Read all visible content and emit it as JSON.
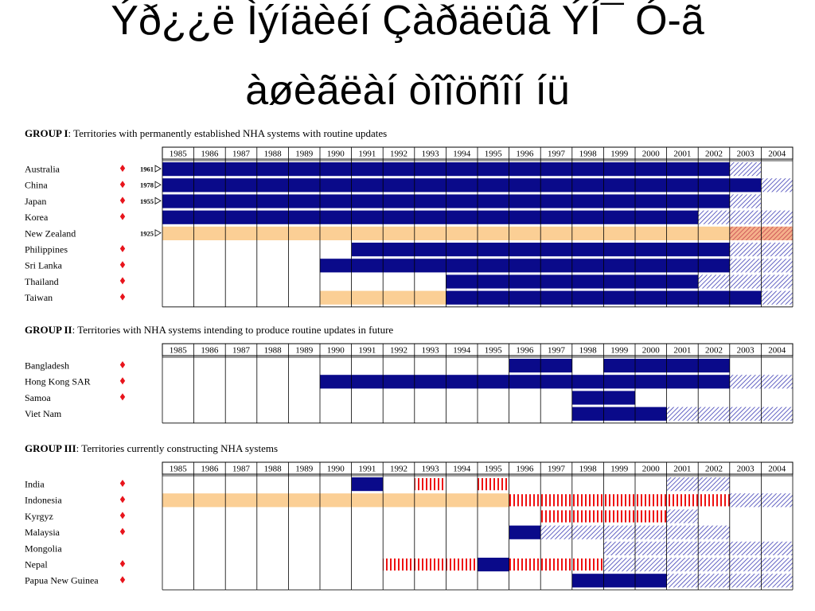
{
  "slide": {
    "title_line1": "Ýð¿¿ë Ìýíäèéí Çàðäëûã ÝÍ¯ Ó-ã",
    "title_line2": "àøèãëàí òîîöñîí íü"
  },
  "colors": {
    "established": "#0a0a8a",
    "partial": "#fbcf95",
    "partial_update": "#f5b08a",
    "under_construction": "#ee1111",
    "planned_hatch": "#3d3db5",
    "marker": "#e8141c"
  },
  "chart_data": {
    "type": "timeline",
    "years": [
      "1985",
      "1986",
      "1987",
      "1988",
      "1989",
      "1990",
      "1991",
      "1992",
      "1993",
      "1994",
      "1995",
      "1996",
      "1997",
      "1998",
      "1999",
      "2000",
      "2001",
      "2002",
      "2003",
      "2004"
    ],
    "groups": [
      {
        "label_bold": "GROUP I",
        "label_rest": ": Territories with permanently established NHA systems with routine updates",
        "rows": [
          {
            "name": "Australia",
            "marker": true,
            "start_label": "1961",
            "segments": [
              {
                "from": 1985,
                "to": 2002,
                "kind": "solid"
              },
              {
                "from": 2003,
                "to": 2003,
                "kind": "hatch"
              }
            ]
          },
          {
            "name": "China",
            "marker": true,
            "start_label": "1978",
            "segments": [
              {
                "from": 1985,
                "to": 2003,
                "kind": "solid"
              },
              {
                "from": 2004,
                "to": 2004,
                "kind": "hatch"
              }
            ]
          },
          {
            "name": "Japan",
            "marker": true,
            "start_label": "1955",
            "segments": [
              {
                "from": 1985,
                "to": 2002,
                "kind": "solid"
              },
              {
                "from": 2003,
                "to": 2003,
                "kind": "hatch"
              }
            ]
          },
          {
            "name": "Korea",
            "marker": true,
            "start_label": "",
            "segments": [
              {
                "from": 1985,
                "to": 2001,
                "kind": "solid"
              },
              {
                "from": 2002,
                "to": 2004,
                "kind": "hatch"
              }
            ]
          },
          {
            "name": "New Zealand",
            "marker": false,
            "start_label": "1925",
            "segments": [
              {
                "from": 1985,
                "to": 2002,
                "kind": "partial"
              },
              {
                "from": 2003,
                "to": 2004,
                "kind": "hatch_orange"
              }
            ]
          },
          {
            "name": "Philippines",
            "marker": true,
            "start_label": "",
            "segments": [
              {
                "from": 1991,
                "to": 2002,
                "kind": "solid"
              },
              {
                "from": 2003,
                "to": 2004,
                "kind": "hatch"
              }
            ]
          },
          {
            "name": "Sri Lanka",
            "marker": true,
            "start_label": "",
            "segments": [
              {
                "from": 1990,
                "to": 2002,
                "kind": "solid"
              },
              {
                "from": 2003,
                "to": 2004,
                "kind": "hatch"
              }
            ]
          },
          {
            "name": "Thailand",
            "marker": true,
            "start_label": "",
            "segments": [
              {
                "from": 1994,
                "to": 2001,
                "kind": "solid"
              },
              {
                "from": 2002,
                "to": 2004,
                "kind": "hatch"
              }
            ]
          },
          {
            "name": "Taiwan",
            "marker": true,
            "start_label": "",
            "segments": [
              {
                "from": 1990,
                "to": 1993,
                "kind": "partial"
              },
              {
                "from": 1994,
                "to": 2003,
                "kind": "solid"
              },
              {
                "from": 2004,
                "to": 2004,
                "kind": "hatch"
              }
            ]
          }
        ]
      },
      {
        "label_bold": "GROUP II",
        "label_rest": ": Territories with NHA systems intending to produce routine updates in future",
        "rows": [
          {
            "name": "Bangladesh",
            "marker": true,
            "start_label": "",
            "segments": [
              {
                "from": 1996,
                "to": 1997,
                "kind": "solid"
              },
              {
                "from": 1999,
                "to": 2002,
                "kind": "solid"
              }
            ]
          },
          {
            "name": "Hong Kong SAR",
            "marker": true,
            "start_label": "",
            "segments": [
              {
                "from": 1990,
                "to": 2002,
                "kind": "solid"
              },
              {
                "from": 2003,
                "to": 2004,
                "kind": "hatch"
              }
            ]
          },
          {
            "name": "Samoa",
            "marker": true,
            "start_label": "",
            "segments": [
              {
                "from": 1998,
                "to": 1999,
                "kind": "solid"
              }
            ]
          },
          {
            "name": "Viet Nam",
            "marker": false,
            "start_label": "",
            "segments": [
              {
                "from": 1998,
                "to": 2000,
                "kind": "solid"
              },
              {
                "from": 2001,
                "to": 2004,
                "kind": "hatch"
              }
            ]
          }
        ]
      },
      {
        "label_bold": "GROUP III",
        "label_rest": ": Territories currently constructing NHA systems",
        "rows": [
          {
            "name": "India",
            "marker": true,
            "start_label": "",
            "segments": [
              {
                "from": 1991,
                "to": 1991,
                "kind": "solid"
              },
              {
                "from": 1993,
                "to": 1993,
                "kind": "stripe"
              },
              {
                "from": 1995,
                "to": 1995,
                "kind": "stripe"
              },
              {
                "from": 2001,
                "to": 2002,
                "kind": "hatch"
              }
            ]
          },
          {
            "name": "Indonesia",
            "marker": true,
            "start_label": "",
            "segments": [
              {
                "from": 1985,
                "to": 1995,
                "kind": "partial"
              },
              {
                "from": 1996,
                "to": 2002,
                "kind": "stripe"
              },
              {
                "from": 2003,
                "to": 2004,
                "kind": "hatch"
              }
            ]
          },
          {
            "name": "Kyrgyz",
            "marker": true,
            "start_label": "",
            "segments": [
              {
                "from": 1997,
                "to": 2000,
                "kind": "stripe"
              },
              {
                "from": 2001,
                "to": 2001,
                "kind": "hatch"
              }
            ]
          },
          {
            "name": "Malaysia",
            "marker": true,
            "start_label": "",
            "segments": [
              {
                "from": 1996,
                "to": 1996,
                "kind": "solid"
              },
              {
                "from": 1997,
                "to": 2002,
                "kind": "hatch"
              }
            ]
          },
          {
            "name": "Mongolia",
            "marker": false,
            "start_label": "",
            "segments": [
              {
                "from": 1999,
                "to": 2004,
                "kind": "hatch"
              }
            ]
          },
          {
            "name": "Nepal",
            "marker": true,
            "start_label": "",
            "segments": [
              {
                "from": 1992,
                "to": 1994,
                "kind": "stripe"
              },
              {
                "from": 1995,
                "to": 1995,
                "kind": "solid"
              },
              {
                "from": 1996,
                "to": 1998,
                "kind": "stripe"
              },
              {
                "from": 1999,
                "to": 2004,
                "kind": "hatch"
              }
            ]
          },
          {
            "name": "Papua New Guinea",
            "marker": true,
            "start_label": "",
            "segments": [
              {
                "from": 1998,
                "to": 2000,
                "kind": "solid"
              },
              {
                "from": 2001,
                "to": 2004,
                "kind": "hatch"
              }
            ]
          }
        ]
      }
    ]
  }
}
